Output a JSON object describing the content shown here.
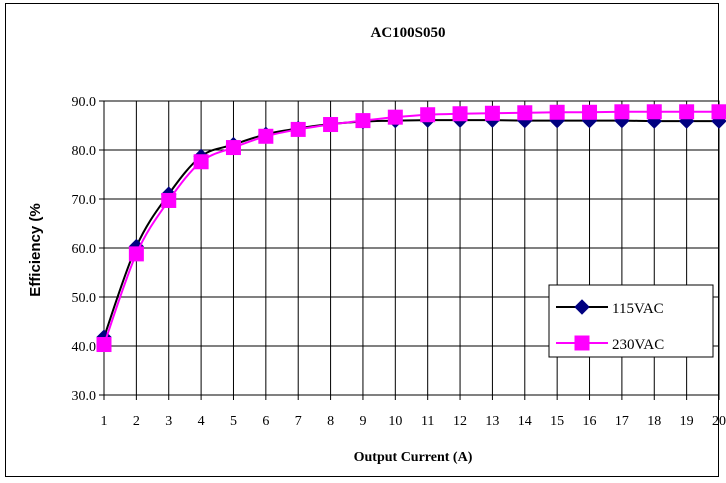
{
  "chart_data": {
    "type": "line",
    "title": "AC100S050",
    "xlabel": "Output Current (A)",
    "ylabel": "Efficiency (%",
    "categories": [
      "1",
      "2",
      "3",
      "4",
      "5",
      "6",
      "7",
      "8",
      "9",
      "10",
      "11",
      "12",
      "13",
      "14",
      "15",
      "16",
      "17",
      "18",
      "19",
      "20"
    ],
    "ylim": [
      30,
      90
    ],
    "yticks": [
      "30.0",
      "40.0",
      "50.0",
      "60.0",
      "70.0",
      "80.0",
      "90.0"
    ],
    "grid": true,
    "legend": "bottom-right",
    "series": [
      {
        "name": "115VAC",
        "color": "#000080",
        "line_color": "#000000",
        "marker": "diamond",
        "values": [
          41.8,
          60.3,
          71.0,
          78.7,
          81.1,
          83.2,
          84.4,
          85.3,
          85.8,
          86.0,
          86.1,
          86.1,
          86.1,
          86.0,
          86.0,
          86.0,
          86.0,
          85.9,
          85.9,
          85.9
        ]
      },
      {
        "name": "230VAC",
        "color": "#ff00ff",
        "line_color": "#ff00ff",
        "marker": "square",
        "values": [
          40.3,
          58.8,
          69.7,
          77.6,
          80.5,
          82.8,
          84.2,
          85.2,
          86.0,
          86.7,
          87.2,
          87.4,
          87.5,
          87.6,
          87.7,
          87.7,
          87.8,
          87.8,
          87.8,
          87.8
        ]
      }
    ]
  }
}
